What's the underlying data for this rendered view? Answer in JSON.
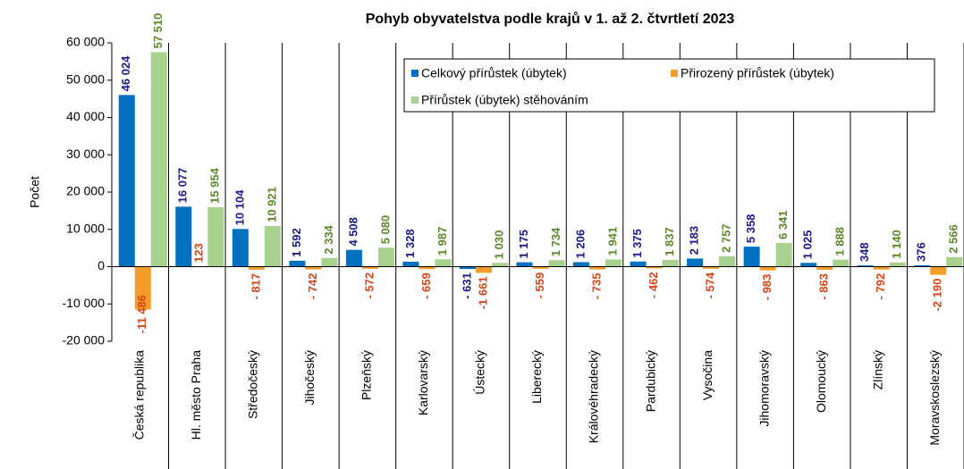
{
  "chart_data": {
    "type": "bar",
    "title": "Pohyb obyvatelstva podle krajů v 1. až 2. čtvrtletí 2023",
    "y_label": "Počet",
    "categories": [
      "Česká republika",
      "Hl. město Praha",
      "Středočeský",
      "Jihočeský",
      "Plzeňský",
      "Karlovarský",
      "Ústecký",
      "Liberecký",
      "Královéhradecký",
      "Pardubický",
      "Vysočina",
      "Jihomoravský",
      "Olomoucký",
      "Zlínský",
      "Moravskoslezský"
    ],
    "series": [
      {
        "name": "Celkový přírůstek (úbytek)",
        "color": "#0070c0",
        "label_color": "#1a1a8c",
        "values": [
          46024,
          16077,
          10104,
          1592,
          4508,
          1328,
          -631,
          1175,
          1206,
          1375,
          2183,
          5358,
          1025,
          348,
          376
        ],
        "value_labels": [
          "46 024",
          "16 077",
          "10 104",
          "1 592",
          "4 508",
          "1 328",
          "- 631",
          "1 175",
          "1 206",
          "1 375",
          "2 183",
          "5 358",
          "1 025",
          "348",
          "376"
        ]
      },
      {
        "name": "Přirozený přírůstek (úbytek)",
        "color": "#f59d2a",
        "label_color": "#d9461a",
        "values": [
          -11486,
          123,
          -817,
          -742,
          -572,
          -659,
          -1661,
          -559,
          -735,
          -462,
          -574,
          -983,
          -863,
          -792,
          -2190
        ],
        "value_labels": [
          "-11 486",
          "123",
          "- 817",
          "- 742",
          "- 572",
          "- 659",
          "-1 661",
          "- 559",
          "- 735",
          "- 462",
          "- 574",
          "- 983",
          "- 863",
          "- 792",
          "-2 190"
        ]
      },
      {
        "name": "Přírůstek (úbytek) stěhováním",
        "color": "#a9d18e",
        "label_color": "#5b8a2a",
        "values": [
          57510,
          15954,
          10921,
          2334,
          5080,
          1987,
          1030,
          1734,
          1941,
          1837,
          2757,
          6341,
          1888,
          1140,
          2566
        ],
        "value_labels": [
          "57 510",
          "15 954",
          "10 921",
          "2 334",
          "5 080",
          "1 987",
          "1 030",
          "1 734",
          "1 941",
          "1 837",
          "2 757",
          "6 341",
          "1 888",
          "1 140",
          "2 566"
        ]
      }
    ],
    "ylim": [
      -20000,
      60000
    ],
    "yticks": [
      {
        "value": -20000,
        "label": "-20 000"
      },
      {
        "value": -10000,
        "label": "-10 000"
      },
      0,
      {
        "value": 10000,
        "label": "10 000"
      },
      {
        "value": 20000,
        "label": "20 000"
      },
      {
        "value": 30000,
        "label": "30 000"
      },
      {
        "value": 40000,
        "label": "40 000"
      },
      {
        "value": 50000,
        "label": "50 000"
      },
      {
        "value": 60000,
        "label": "60 000"
      }
    ],
    "legend": "top-right"
  }
}
